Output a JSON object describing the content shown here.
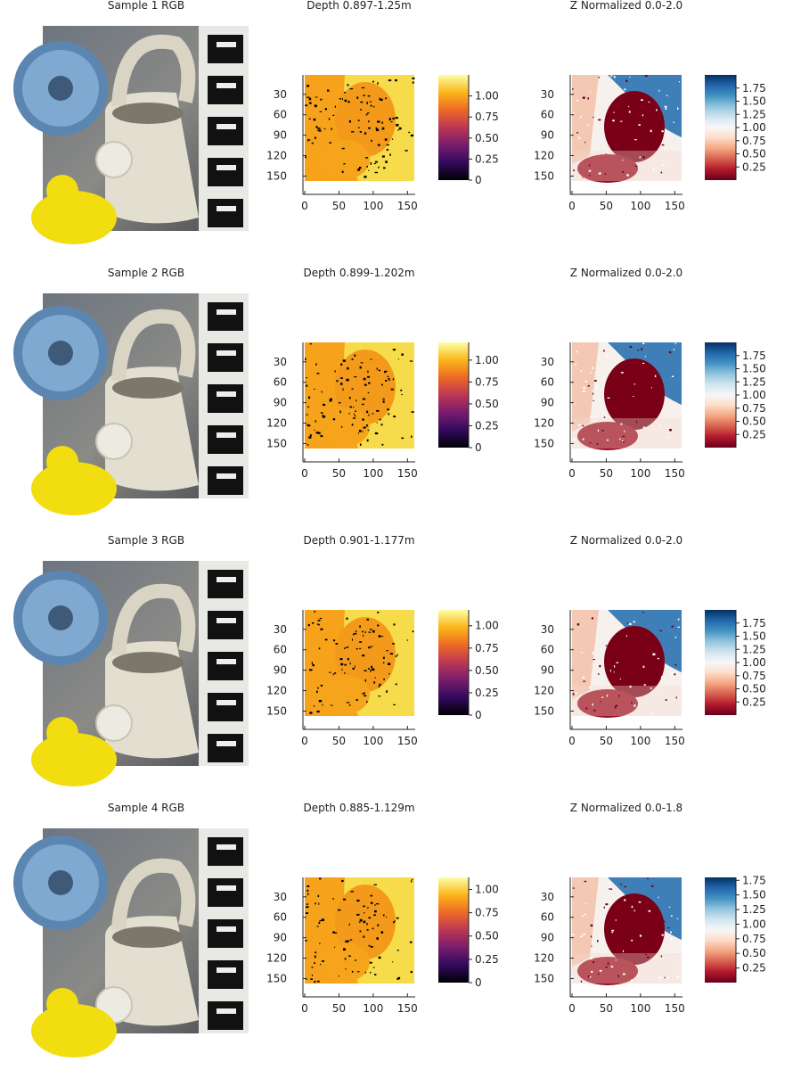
{
  "chart_data": [
    {
      "type": "heatmap-grid",
      "rows": [
        {
          "rgb": {
            "title": "Sample 1 RGB"
          },
          "depth": {
            "title": "Depth 0.897-1.25m",
            "colormap": "inferno",
            "clim": [
              0,
              1.25
            ],
            "yticks": [
              30,
              60,
              90,
              120,
              150
            ],
            "xticks": [
              0,
              50,
              100,
              150
            ],
            "cbar_ticks": [
              0,
              0.25,
              0.5,
              0.75,
              1.0
            ],
            "cbar_labels": [
              "0",
              "0.25",
              "0.50",
              "0.75",
              "1.00"
            ]
          },
          "z": {
            "title": "Z Normalized 0.0-2.0",
            "colormap": "RdBu",
            "clim": [
              0,
              2.0
            ],
            "yticks": [
              30,
              60,
              90,
              120,
              150
            ],
            "xticks": [
              0,
              50,
              100,
              150
            ],
            "cbar_ticks": [
              0.25,
              0.5,
              0.75,
              1.0,
              1.25,
              1.5,
              1.75
            ],
            "cbar_labels": [
              "0.25",
              "0.50",
              "0.75",
              "1.00",
              "1.25",
              "1.50",
              "1.75"
            ]
          }
        },
        {
          "rgb": {
            "title": "Sample 2 RGB"
          },
          "depth": {
            "title": "Depth 0.899-1.202m",
            "colormap": "inferno",
            "clim": [
              0,
              1.202
            ],
            "yticks": [
              30,
              60,
              90,
              120,
              150
            ],
            "xticks": [
              0,
              50,
              100,
              150
            ],
            "cbar_ticks": [
              0,
              0.25,
              0.5,
              0.75,
              1.0
            ],
            "cbar_labels": [
              "0",
              "0.25",
              "0.50",
              "0.75",
              "1.00"
            ]
          },
          "z": {
            "title": "Z Normalized 0.0-2.0",
            "colormap": "RdBu",
            "clim": [
              0,
              2.0
            ],
            "yticks": [
              30,
              60,
              90,
              120,
              150
            ],
            "xticks": [
              0,
              50,
              100,
              150
            ],
            "cbar_ticks": [
              0.25,
              0.5,
              0.75,
              1.0,
              1.25,
              1.5,
              1.75
            ],
            "cbar_labels": [
              "0.25",
              "0.50",
              "0.75",
              "1.00",
              "1.25",
              "1.50",
              "1.75"
            ]
          }
        },
        {
          "rgb": {
            "title": "Sample 3 RGB"
          },
          "depth": {
            "title": "Depth 0.901-1.177m",
            "colormap": "inferno",
            "clim": [
              0,
              1.177
            ],
            "yticks": [
              30,
              60,
              90,
              120,
              150
            ],
            "xticks": [
              0,
              50,
              100,
              150
            ],
            "cbar_ticks": [
              0,
              0.25,
              0.5,
              0.75,
              1.0
            ],
            "cbar_labels": [
              "0",
              "0.25",
              "0.50",
              "0.75",
              "1.00"
            ]
          },
          "z": {
            "title": "Z Normalized 0.0-2.0",
            "colormap": "RdBu",
            "clim": [
              0,
              2.0
            ],
            "yticks": [
              30,
              60,
              90,
              120,
              150
            ],
            "xticks": [
              0,
              50,
              100,
              150
            ],
            "cbar_ticks": [
              0.25,
              0.5,
              0.75,
              1.0,
              1.25,
              1.5,
              1.75
            ],
            "cbar_labels": [
              "0.25",
              "0.50",
              "0.75",
              "1.00",
              "1.25",
              "1.50",
              "1.75"
            ]
          }
        },
        {
          "rgb": {
            "title": "Sample 4 RGB"
          },
          "depth": {
            "title": "Depth 0.885-1.129m",
            "colormap": "inferno",
            "clim": [
              0,
              1.129
            ],
            "yticks": [
              30,
              60,
              90,
              120,
              150
            ],
            "xticks": [
              0,
              50,
              100,
              150
            ],
            "cbar_ticks": [
              0,
              0.25,
              0.5,
              0.75,
              1.0
            ],
            "cbar_labels": [
              "0",
              "0.25",
              "0.50",
              "0.75",
              "1.00"
            ]
          },
          "z": {
            "title": "Z Normalized 0.0-1.8",
            "colormap": "RdBu",
            "clim": [
              0,
              1.8
            ],
            "yticks": [
              30,
              60,
              90,
              120,
              150
            ],
            "xticks": [
              0,
              50,
              100,
              150
            ],
            "cbar_ticks": [
              0.25,
              0.5,
              0.75,
              1.0,
              1.25,
              1.5,
              1.75
            ],
            "cbar_labels": [
              "0.25",
              "0.50",
              "0.75",
              "1.00",
              "1.25",
              "1.50",
              "1.75"
            ]
          }
        }
      ],
      "image_size": [
        160,
        160
      ]
    }
  ],
  "colors": {
    "inferno": [
      "#000004",
      "#320a5e",
      "#781c6d",
      "#bc3754",
      "#ed6925",
      "#fbb61a",
      "#fcffa4"
    ],
    "rdbu": [
      "#67001f",
      "#b2182b",
      "#d6604d",
      "#f4a582",
      "#fddbc7",
      "#f7f7f7",
      "#d1e5f0",
      "#92c5de",
      "#4393c3",
      "#2166ac",
      "#053061"
    ],
    "depth_fill": "#f7a21b",
    "depth_light": "#f6dc4a",
    "z_dark": "#7a0017",
    "z_blue": "#3f7fb8",
    "z_light": "#f3c9b4"
  }
}
